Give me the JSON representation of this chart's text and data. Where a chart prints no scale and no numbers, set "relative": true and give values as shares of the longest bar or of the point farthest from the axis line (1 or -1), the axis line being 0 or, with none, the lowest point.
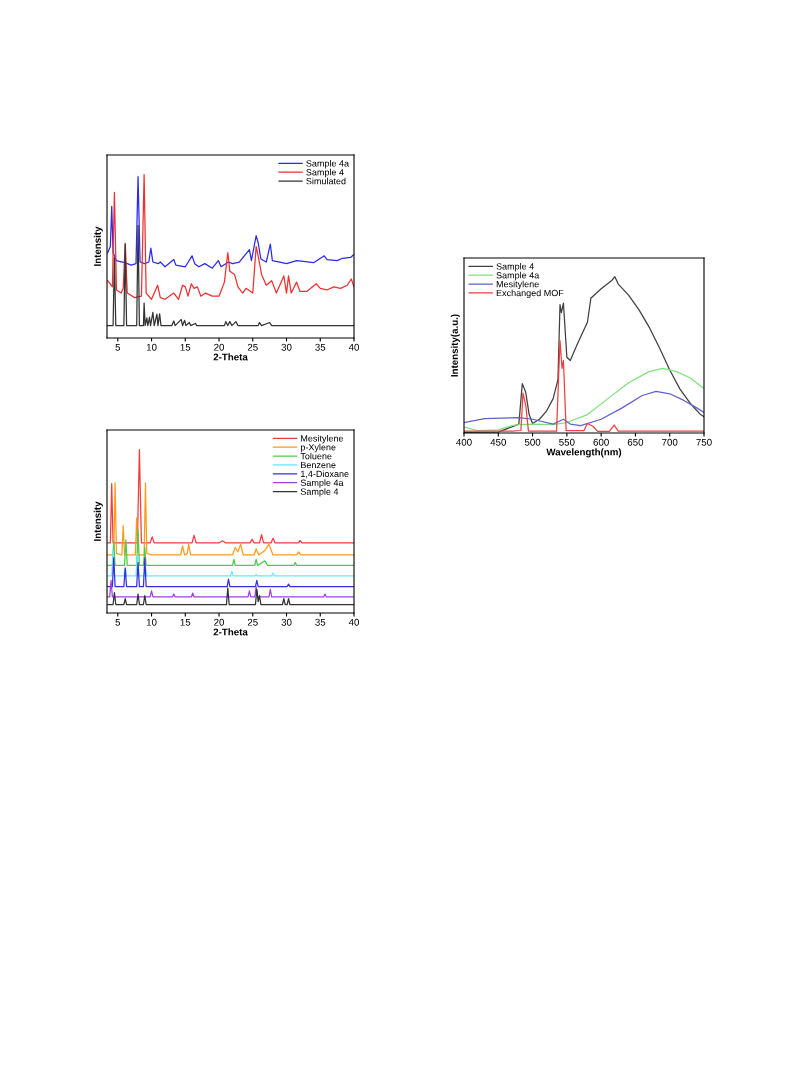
{
  "chart_data": [
    {
      "type": "line",
      "xlabel": "2-Theta",
      "ylabel": "Intensity",
      "xlim": [
        3.4,
        40
      ],
      "xticks": [
        5,
        10,
        15,
        20,
        25,
        30,
        35,
        40
      ],
      "relative": true,
      "tick_labels": "x",
      "legend": "top right",
      "series": [
        {
          "name": "Sample 4a",
          "color": "#2a2af0",
          "x": [
            3.5,
            3.9,
            4.1,
            4.3,
            4.8,
            6,
            7,
            7.7,
            8.0,
            8.3,
            9,
            9.6,
            9.9,
            10.2,
            11,
            11.3,
            12,
            13.3,
            13.6,
            15,
            16,
            16.4,
            17,
            17.9,
            19,
            19.9,
            20.3,
            21.4,
            22,
            23,
            24.5,
            24.8,
            25.5,
            25.8,
            26.2,
            27,
            27.6,
            27.9,
            29,
            30,
            31.5,
            32.5,
            34,
            35.6,
            36,
            37.5,
            38.3,
            39.5,
            40
          ],
          "values": [
            0.522,
            0.56,
            0.806,
            0.522,
            0.474,
            0.461,
            0.446,
            0.455,
            0.987,
            0.465,
            0.455,
            0.465,
            0.55,
            0.465,
            0.455,
            0.465,
            0.436,
            0.48,
            0.446,
            0.436,
            0.503,
            0.455,
            0.436,
            0.455,
            0.427,
            0.474,
            0.436,
            0.465,
            0.455,
            0.465,
            0.541,
            0.474,
            0.626,
            0.583,
            0.484,
            0.465,
            0.575,
            0.474,
            0.465,
            0.455,
            0.474,
            0.469,
            0.461,
            0.503,
            0.48,
            0.474,
            0.488,
            0.493,
            0.512
          ]
        },
        {
          "name": "Sample 4",
          "color": "#f03030",
          "x": [
            3.5,
            4.2,
            4.5,
            4.8,
            5.5,
            5.8,
            6.1,
            6.4,
            7.5,
            8.5,
            8.9,
            9.2,
            10,
            10.9,
            11.3,
            12,
            13.3,
            14,
            14.6,
            15,
            15.4,
            15.9,
            16.3,
            16.8,
            17.3,
            18,
            19,
            20,
            20.8,
            21.3,
            21.6,
            22.3,
            22.8,
            23.5,
            24,
            25,
            25.5,
            25.8,
            26.3,
            27,
            27.8,
            28.5,
            29.6,
            30,
            30.3,
            30.7,
            31.5,
            32,
            33,
            34.4,
            35,
            36,
            37,
            38,
            39,
            39.6,
            40
          ],
          "values": [
            0.351,
            0.313,
            0.892,
            0.294,
            0.275,
            0.304,
            0.579,
            0.275,
            0.247,
            0.256,
            1.0,
            0.275,
            0.237,
            0.323,
            0.247,
            0.237,
            0.275,
            0.237,
            0.323,
            0.313,
            0.256,
            0.332,
            0.304,
            0.313,
            0.256,
            0.275,
            0.256,
            0.256,
            0.342,
            0.522,
            0.408,
            0.389,
            0.313,
            0.275,
            0.304,
            0.275,
            0.56,
            0.503,
            0.389,
            0.323,
            0.351,
            0.275,
            0.38,
            0.275,
            0.38,
            0.275,
            0.342,
            0.285,
            0.285,
            0.332,
            0.304,
            0.294,
            0.313,
            0.304,
            0.323,
            0.361,
            0.313
          ]
        },
        {
          "name": "Simulated",
          "color": "#333333",
          "x": [
            3.4,
            4.3,
            4.5,
            4.7,
            5.9,
            6.1,
            6.3,
            7.8,
            8.0,
            8.2,
            8.8,
            8.9,
            9.05,
            9.3,
            9.45,
            9.7,
            9.85,
            10.2,
            10.4,
            10.8,
            10.95,
            11.2,
            11.4,
            13.0,
            13.3,
            13.5,
            14.4,
            14.6,
            14.9,
            15.1,
            15.6,
            15.8,
            16.5,
            16.7,
            20.8,
            21,
            21.3,
            21.6,
            21.9,
            22.5,
            22.8,
            25.8,
            26,
            26.3,
            27.5,
            27.8,
            40
          ],
          "values": [
            0.076,
            0.076,
            0.49,
            0.076,
            0.076,
            0.575,
            0.076,
            0.076,
            0.69,
            0.076,
            0.076,
            0.214,
            0.076,
            0.123,
            0.076,
            0.127,
            0.076,
            0.157,
            0.076,
            0.146,
            0.076,
            0.148,
            0.076,
            0.076,
            0.104,
            0.076,
            0.114,
            0.076,
            0.108,
            0.076,
            0.095,
            0.076,
            0.089,
            0.076,
            0.076,
            0.1,
            0.076,
            0.1,
            0.076,
            0.1,
            0.076,
            0.076,
            0.095,
            0.076,
            0.095,
            0.076,
            0.076
          ]
        }
      ]
    },
    {
      "type": "line",
      "xlabel": "2-Theta",
      "ylabel": "Intensity",
      "xlim": [
        3.4,
        40
      ],
      "xticks": [
        5,
        10,
        15,
        20,
        25,
        30,
        35,
        40
      ],
      "relative": true,
      "tick_labels": "x",
      "legend": "top right",
      "series": [
        {
          "name": "Mesitylene",
          "color": "#f03c3c",
          "x": [
            3.5,
            3.9,
            4.1,
            4.3,
            5,
            7.9,
            8.2,
            8.5,
            9.8,
            10.1,
            10.4,
            15,
            16.0,
            16.3,
            16.6,
            20,
            20.5,
            21,
            24.6,
            24.9,
            25.2,
            26,
            26.3,
            26.6,
            27.7,
            28,
            28.3,
            31.8,
            32,
            32.3,
            40
          ],
          "values": [
            0.429,
            0.429,
            0.792,
            0.429,
            0.429,
            0.429,
            1.0,
            0.429,
            0.429,
            0.466,
            0.429,
            0.429,
            0.429,
            0.475,
            0.429,
            0.429,
            0.442,
            0.429,
            0.429,
            0.451,
            0.429,
            0.429,
            0.479,
            0.429,
            0.429,
            0.457,
            0.429,
            0.429,
            0.444,
            0.429,
            0.429
          ]
        },
        {
          "name": "p-Xylene",
          "color": "#ff9a1a",
          "x": [
            3.5,
            4.4,
            4.6,
            4.8,
            5.6,
            5.8,
            6.0,
            7.6,
            7.8,
            8.0,
            8.9,
            9.1,
            9.3,
            10,
            14.3,
            14.6,
            14.9,
            15.3,
            15.5,
            15.8,
            22,
            22.4,
            22.8,
            23.2,
            23.6,
            25.2,
            25.5,
            25.9,
            26.8,
            27.4,
            28,
            31.5,
            31.8,
            32.1,
            40
          ],
          "values": [
            0.355,
            0.355,
            0.797,
            0.365,
            0.355,
            0.534,
            0.355,
            0.355,
            0.582,
            0.355,
            0.355,
            0.797,
            0.365,
            0.355,
            0.355,
            0.411,
            0.355,
            0.365,
            0.42,
            0.355,
            0.355,
            0.401,
            0.374,
            0.42,
            0.355,
            0.355,
            0.392,
            0.355,
            0.383,
            0.42,
            0.355,
            0.355,
            0.374,
            0.355,
            0.355
          ]
        },
        {
          "name": "Toluene",
          "color": "#4ccc4c",
          "x": [
            3.5,
            4.2,
            4.4,
            4.6,
            6.0,
            6.2,
            6.4,
            7.8,
            8.0,
            8.2,
            8.8,
            9.0,
            9.2,
            10,
            22,
            22.2,
            22.4,
            25.3,
            25.5,
            25.7,
            26.8,
            27.2,
            31.1,
            31.3,
            31.5,
            40
          ],
          "values": [
            0.291,
            0.291,
            0.438,
            0.291,
            0.291,
            0.448,
            0.291,
            0.291,
            0.512,
            0.291,
            0.291,
            0.401,
            0.291,
            0.291,
            0.291,
            0.328,
            0.291,
            0.291,
            0.328,
            0.291,
            0.319,
            0.291,
            0.291,
            0.309,
            0.291,
            0.291
          ]
        },
        {
          "name": "Benzene",
          "color": "#66e8ff",
          "x": [
            3.5,
            4.1,
            4.3,
            4.5,
            5.9,
            6.1,
            6.3,
            7.7,
            7.9,
            8.1,
            8.9,
            9.1,
            9.3,
            21.7,
            21.9,
            22.1,
            25.3,
            25.5,
            25.7,
            27.8,
            28,
            28.2,
            40
          ],
          "values": [
            0.227,
            0.227,
            0.383,
            0.227,
            0.227,
            0.282,
            0.227,
            0.227,
            0.365,
            0.227,
            0.227,
            0.282,
            0.227,
            0.227,
            0.254,
            0.227,
            0.227,
            0.236,
            0.227,
            0.227,
            0.245,
            0.227,
            0.227
          ]
        },
        {
          "name": "1,4-Dioxane",
          "color": "#3030e0",
          "x": [
            3.5,
            4.2,
            4.4,
            4.6,
            5.9,
            6.1,
            6.3,
            7.8,
            8.0,
            8.2,
            8.8,
            9.0,
            9.2,
            21.2,
            21.4,
            21.6,
            25.4,
            25.6,
            25.8,
            30.1,
            30.3,
            30.5,
            40
          ],
          "values": [
            0.162,
            0.162,
            0.337,
            0.162,
            0.162,
            0.273,
            0.162,
            0.162,
            0.309,
            0.162,
            0.162,
            0.337,
            0.162,
            0.162,
            0.208,
            0.162,
            0.162,
            0.199,
            0.162,
            0.162,
            0.177,
            0.162,
            0.162
          ]
        },
        {
          "name": "Sample 4a",
          "color": "#a040e0",
          "x": [
            3.5,
            3.8,
            4.0,
            4.2,
            9.8,
            10,
            10.2,
            13.1,
            13.3,
            13.5,
            15.9,
            16.1,
            16.3,
            24.3,
            24.5,
            24.7,
            25.3,
            25.5,
            25.7,
            27.4,
            27.6,
            27.8,
            35.5,
            35.7,
            35.9,
            40
          ],
          "values": [
            0.098,
            0.098,
            0.199,
            0.098,
            0.098,
            0.135,
            0.098,
            0.098,
            0.116,
            0.098,
            0.098,
            0.122,
            0.098,
            0.098,
            0.135,
            0.098,
            0.098,
            0.16,
            0.098,
            0.098,
            0.144,
            0.098,
            0.098,
            0.116,
            0.098,
            0.098
          ]
        },
        {
          "name": "Sample 4",
          "color": "#333333",
          "x": [
            3.5,
            4.3,
            4.5,
            4.7,
            5.9,
            6.1,
            6.3,
            7.8,
            8.0,
            8.2,
            8.8,
            9.0,
            9.2,
            21.1,
            21.3,
            21.5,
            25.4,
            25.6,
            25.8,
            26,
            26.2,
            29.4,
            29.6,
            29.8,
            30.1,
            30.3,
            30.5,
            40
          ],
          "values": [
            0.052,
            0.052,
            0.125,
            0.052,
            0.052,
            0.088,
            0.052,
            0.052,
            0.116,
            0.052,
            0.052,
            0.107,
            0.052,
            0.052,
            0.153,
            0.052,
            0.052,
            0.144,
            0.07,
            0.107,
            0.052,
            0.052,
            0.088,
            0.052,
            0.052,
            0.088,
            0.052,
            0.052
          ]
        }
      ]
    },
    {
      "type": "line",
      "xlabel": "Wavelength(nm)",
      "ylabel": "Intensity(a.u.)",
      "xlim": [
        400,
        750
      ],
      "xticks": [
        400,
        450,
        500,
        550,
        600,
        650,
        700,
        750
      ],
      "relative": true,
      "tick_labels": "x",
      "legend": "top left",
      "series": [
        {
          "name": "Sample 4",
          "color": "#404040",
          "x": [
            400,
            450,
            480,
            485,
            490,
            495,
            500,
            510,
            520,
            530,
            537,
            540,
            542,
            545,
            550,
            555,
            565,
            580,
            585,
            600,
            615,
            620,
            625,
            640,
            655,
            670,
            685,
            700,
            715,
            730,
            745,
            750
          ],
          "values": [
            0.004,
            0.006,
            0.057,
            0.316,
            0.261,
            0.118,
            0.061,
            0.088,
            0.138,
            0.22,
            0.342,
            0.821,
            0.77,
            0.831,
            0.485,
            0.464,
            0.566,
            0.709,
            0.862,
            0.923,
            0.974,
            1.0,
            0.953,
            0.882,
            0.79,
            0.678,
            0.546,
            0.403,
            0.281,
            0.189,
            0.118,
            0.104
          ]
        },
        {
          "name": "Sample 4a",
          "color": "#80e080",
          "x": [
            400,
            420,
            450,
            470,
            480,
            500,
            530,
            550,
            580,
            610,
            640,
            670,
            690,
            710,
            730,
            750
          ],
          "values": [
            0.037,
            0.016,
            0.02,
            0.047,
            0.053,
            0.057,
            0.053,
            0.067,
            0.118,
            0.22,
            0.322,
            0.393,
            0.413,
            0.393,
            0.352,
            0.285
          ]
        },
        {
          "name": "Mesitylene",
          "color": "#6060d0",
          "x": [
            400,
            430,
            480,
            500,
            530,
            545,
            555,
            570,
            600,
            630,
            660,
            680,
            700,
            720,
            740,
            750
          ],
          "values": [
            0.067,
            0.092,
            0.098,
            0.088,
            0.057,
            0.088,
            0.057,
            0.047,
            0.088,
            0.159,
            0.24,
            0.267,
            0.251,
            0.21,
            0.159,
            0.132
          ]
        },
        {
          "name": "Exchanged MOF",
          "color": "#f04040",
          "x": [
            400,
            470,
            483,
            486,
            490,
            494,
            535,
            540,
            543,
            545,
            549,
            575,
            580,
            588,
            595,
            612,
            619,
            625,
            750
          ],
          "values": [
            0.012,
            0.012,
            0.016,
            0.255,
            0.179,
            0.012,
            0.012,
            0.591,
            0.413,
            0.464,
            0.016,
            0.016,
            0.061,
            0.043,
            0.01,
            0.01,
            0.051,
            0.012,
            0.012
          ]
        }
      ]
    }
  ]
}
